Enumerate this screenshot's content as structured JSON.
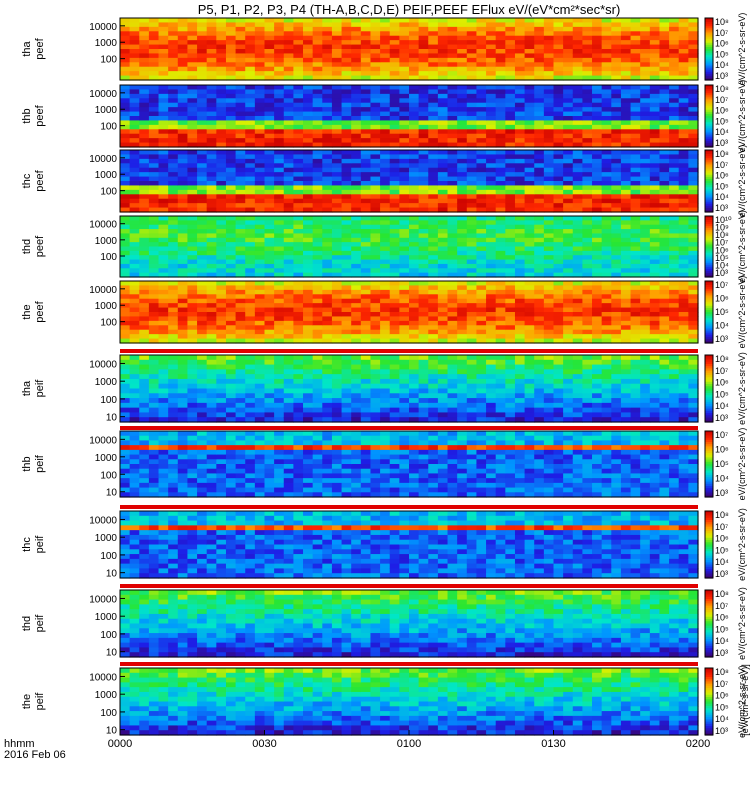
{
  "title": "P5, P1, P2, P3, P4 (TH-A,B,C,D,E) PEIF,PEEF EFlux eV/(eV*cm²*sec*sr)",
  "time_axis": {
    "labels": [
      "0000",
      "0030",
      "0100",
      "0130",
      "0200"
    ],
    "row_label": "hhmm",
    "date_label": "2016 Feb 06"
  },
  "colorbar_unit_label": "[eV/(cm²-s-sr-eV)]",
  "colorbar_shared_label": "eV/(cm^2-s-sr-eV)",
  "chart_data": {
    "type": "heatmap",
    "x_range": [
      "00:00",
      "02:00"
    ],
    "y_scale": "log",
    "ylim": [
      5,
      30000
    ],
    "panels": [
      {
        "name": "tha peef",
        "line1": "tha",
        "line2": "peef",
        "yticks": [
          "10000",
          "1000",
          "100"
        ],
        "cb_ticks": [
          "10⁸",
          "10⁷",
          "10⁶",
          "10⁵",
          "10⁴",
          "10³"
        ],
        "profile": "hot"
      },
      {
        "name": "thb peef",
        "line1": "thb",
        "line2": "peef",
        "yticks": [
          "10000",
          "1000",
          "100"
        ],
        "cb_ticks": [
          "10⁸",
          "10⁷",
          "10⁶",
          "10⁵",
          "10⁴",
          "10³"
        ],
        "profile": "cold_low"
      },
      {
        "name": "thc peef",
        "line1": "thc",
        "line2": "peef",
        "yticks": [
          "10000",
          "1000",
          "100"
        ],
        "cb_ticks": [
          "10⁸",
          "10⁷",
          "10⁶",
          "10⁵",
          "10⁴",
          "10³"
        ],
        "profile": "cold_low"
      },
      {
        "name": "thd peef",
        "line1": "thd",
        "line2": "peef",
        "yticks": [
          "10000",
          "1000",
          "100"
        ],
        "cb_ticks": [
          "10¹⁰",
          "10⁹",
          "10⁸",
          "10⁷",
          "10⁶",
          "10⁵",
          "10⁴",
          "10³"
        ],
        "profile": "mid"
      },
      {
        "name": "the peef",
        "line1": "the",
        "line2": "peef",
        "yticks": [
          "10000",
          "1000",
          "100"
        ],
        "cb_ticks": [
          "10⁷",
          "10⁶",
          "10⁵",
          "10⁴",
          "10³"
        ],
        "profile": "hot"
      },
      {
        "name": "tha peif",
        "line1": "tha",
        "line2": "peif",
        "yticks": [
          "10000",
          "1000",
          "100",
          "10"
        ],
        "cb_ticks": [
          "10⁸",
          "10⁷",
          "10⁶",
          "10⁵",
          "10⁴",
          "10³"
        ],
        "profile": "ion"
      },
      {
        "name": "thb peif",
        "line1": "thb",
        "line2": "peif",
        "yticks": [
          "10000",
          "1000",
          "100",
          "10"
        ],
        "cb_ticks": [
          "10⁷",
          "10⁶",
          "10⁵",
          "10⁴",
          "10³"
        ],
        "profile": "ion_band"
      },
      {
        "name": "thc peif",
        "line1": "thc",
        "line2": "peif",
        "yticks": [
          "10000",
          "1000",
          "100",
          "10"
        ],
        "cb_ticks": [
          "10⁸",
          "10⁷",
          "10⁶",
          "10⁵",
          "10⁴",
          "10³"
        ],
        "profile": "ion_band"
      },
      {
        "name": "thd peif",
        "line1": "thd",
        "line2": "peif",
        "yticks": [
          "10000",
          "1000",
          "100",
          "10"
        ],
        "cb_ticks": [
          "10⁸",
          "10⁷",
          "10⁶",
          "10⁵",
          "10⁴",
          "10³"
        ],
        "profile": "ion"
      },
      {
        "name": "the peif",
        "line1": "the",
        "line2": "peif",
        "yticks": [
          "10000",
          "1000",
          "100",
          "10"
        ],
        "cb_ticks": [
          "10⁸",
          "10⁷",
          "10⁶",
          "10⁵",
          "10⁴",
          "10³"
        ],
        "profile": "ion"
      }
    ]
  },
  "colors": {
    "background": "#ffffff",
    "separator": "#e00000",
    "colormap": [
      "#3c0068",
      "#1e1ee6",
      "#0096ff",
      "#00e6c8",
      "#28e632",
      "#dcf000",
      "#ffa000",
      "#ff2800",
      "#c80000"
    ]
  }
}
